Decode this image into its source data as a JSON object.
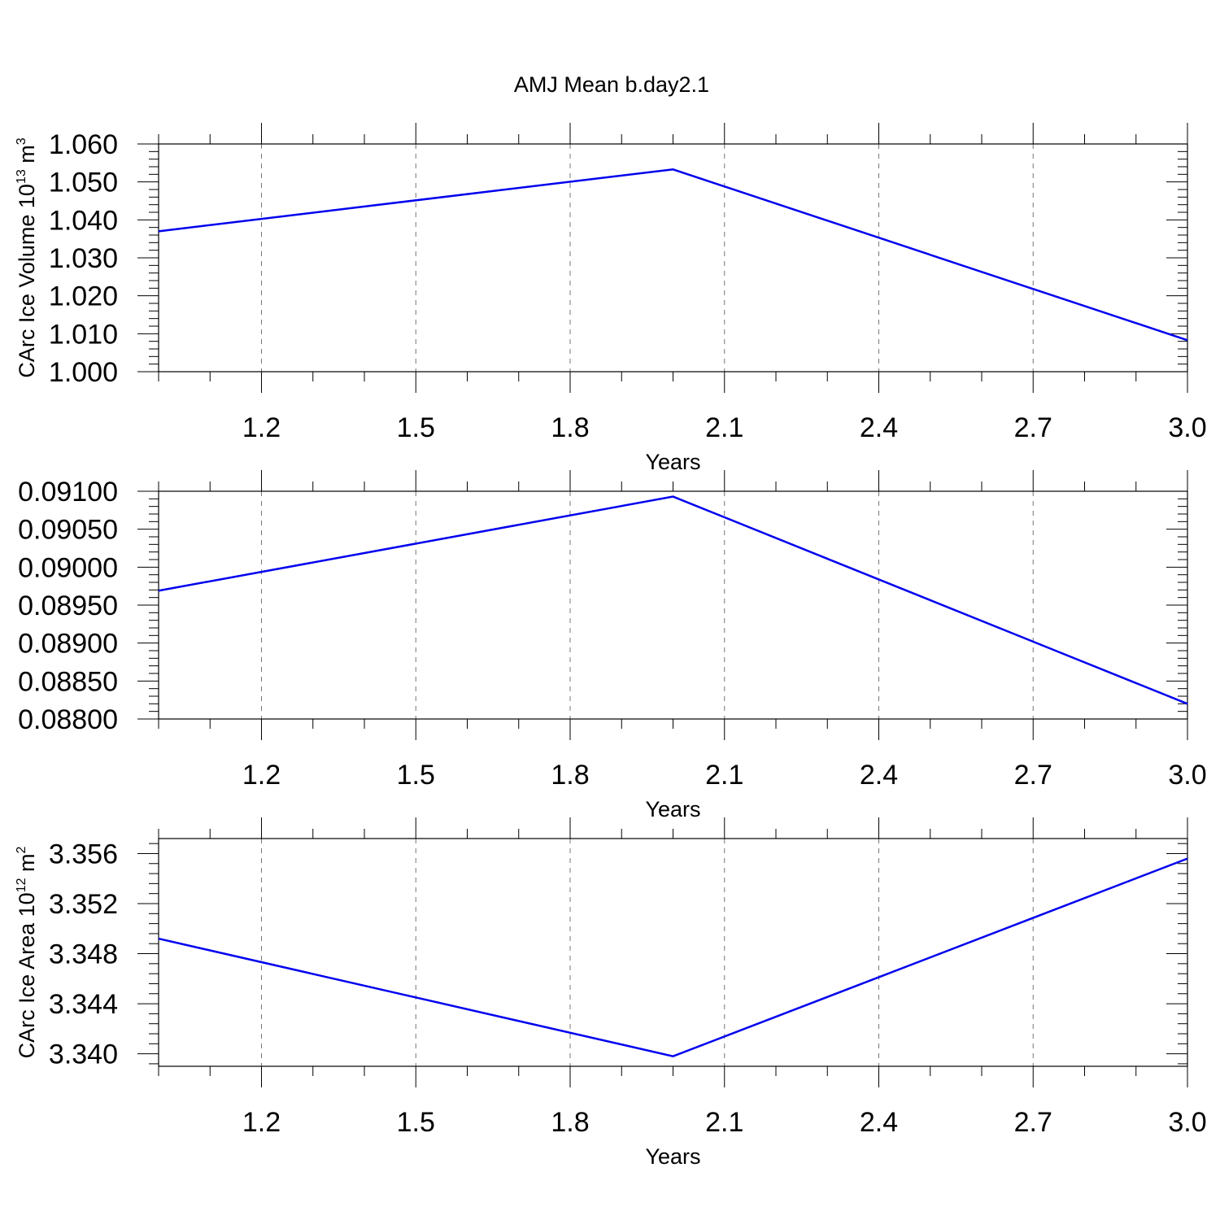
{
  "title": "AMJ Mean b.day2.1",
  "chart_data": [
    {
      "type": "line",
      "xlabel": "Years",
      "ylabel": "CArc Ice Volume 10",
      "ylabel_sup": "13",
      "ylabel_unit": " m",
      "ylabel_unit_sup": "3",
      "x": [
        1.0,
        2.0,
        3.0
      ],
      "values": [
        1.037,
        1.0533,
        1.0083
      ],
      "xlim": [
        1.0,
        3.0
      ],
      "ylim": [
        1.0,
        1.06
      ],
      "xticks": [
        1.2,
        1.5,
        1.8,
        2.1,
        2.4,
        2.7,
        3.0
      ],
      "xtick_labels": [
        "1.2",
        "1.5",
        "1.8",
        "2.1",
        "2.4",
        "2.7",
        "3.0"
      ],
      "yticks": [
        1.0,
        1.01,
        1.02,
        1.03,
        1.04,
        1.05,
        1.06
      ],
      "ytick_labels": [
        "1.000",
        "1.010",
        "1.020",
        "1.030",
        "1.040",
        "1.050",
        "1.060"
      ],
      "grid": "vertical dashed",
      "color": "#0000ee"
    },
    {
      "type": "line",
      "xlabel": "Years",
      "ylabel": "",
      "x": [
        1.0,
        2.0,
        3.0
      ],
      "values": [
        0.08969,
        0.09093,
        0.0882
      ],
      "xlim": [
        1.0,
        3.0
      ],
      "ylim": [
        0.088,
        0.091
      ],
      "xticks": [
        1.2,
        1.5,
        1.8,
        2.1,
        2.4,
        2.7,
        3.0
      ],
      "xtick_labels": [
        "1.2",
        "1.5",
        "1.8",
        "2.1",
        "2.4",
        "2.7",
        "3.0"
      ],
      "yticks": [
        0.088,
        0.0885,
        0.089,
        0.0895,
        0.09,
        0.0905,
        0.091
      ],
      "ytick_labels": [
        "0.08800",
        "0.08850",
        "0.08900",
        "0.08950",
        "0.09000",
        "0.09050",
        "0.09100"
      ],
      "grid": "vertical dashed",
      "color": "#0000ee"
    },
    {
      "type": "line",
      "xlabel": "Years",
      "ylabel": "CArc Ice Area 10",
      "ylabel_sup": "12",
      "ylabel_unit": " m",
      "ylabel_unit_sup": "2",
      "x": [
        1.0,
        2.0,
        3.0
      ],
      "values": [
        3.3492,
        3.3398,
        3.3556
      ],
      "xlim": [
        1.0,
        3.0
      ],
      "ylim": [
        3.339,
        3.3572
      ],
      "xticks": [
        1.2,
        1.5,
        1.8,
        2.1,
        2.4,
        2.7,
        3.0
      ],
      "xtick_labels": [
        "1.2",
        "1.5",
        "1.8",
        "2.1",
        "2.4",
        "2.7",
        "3.0"
      ],
      "yticks": [
        3.34,
        3.344,
        3.348,
        3.352,
        3.356
      ],
      "ytick_labels": [
        "3.340",
        "3.344",
        "3.348",
        "3.352",
        "3.356"
      ],
      "grid": "vertical dashed",
      "color": "#0000ee"
    }
  ]
}
